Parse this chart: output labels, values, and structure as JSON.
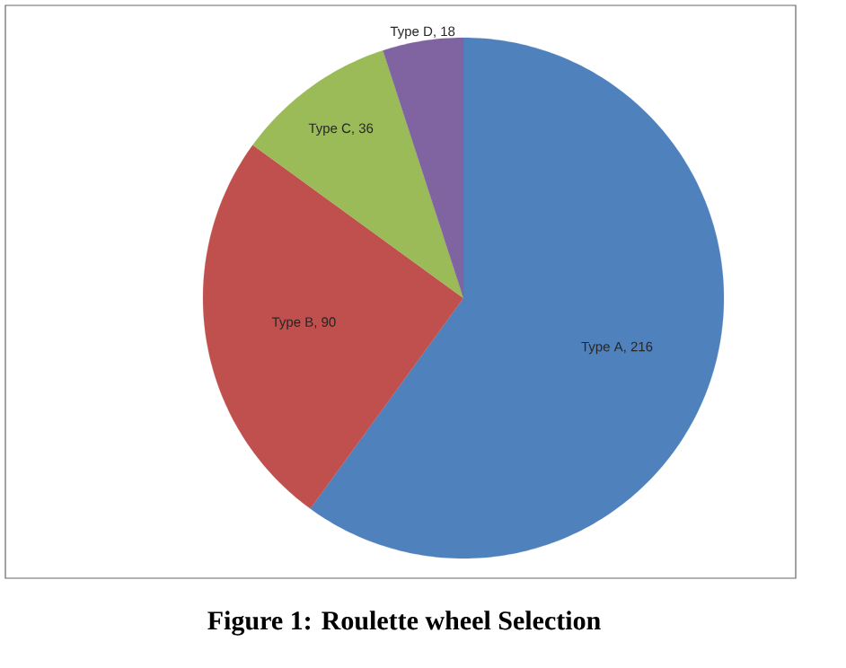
{
  "chart_data": {
    "type": "pie",
    "title": "Figure 1: Roulette wheel Selection",
    "categories": [
      "Type A",
      "Type B",
      "Type C",
      "Type D"
    ],
    "values": [
      216,
      90,
      36,
      18
    ],
    "colors": [
      "#4f81bd",
      "#c0504d",
      "#9bbb59",
      "#8064a2"
    ],
    "value_labels": [
      ", 216",
      ", 90",
      ", 36",
      ", 18"
    ]
  }
}
